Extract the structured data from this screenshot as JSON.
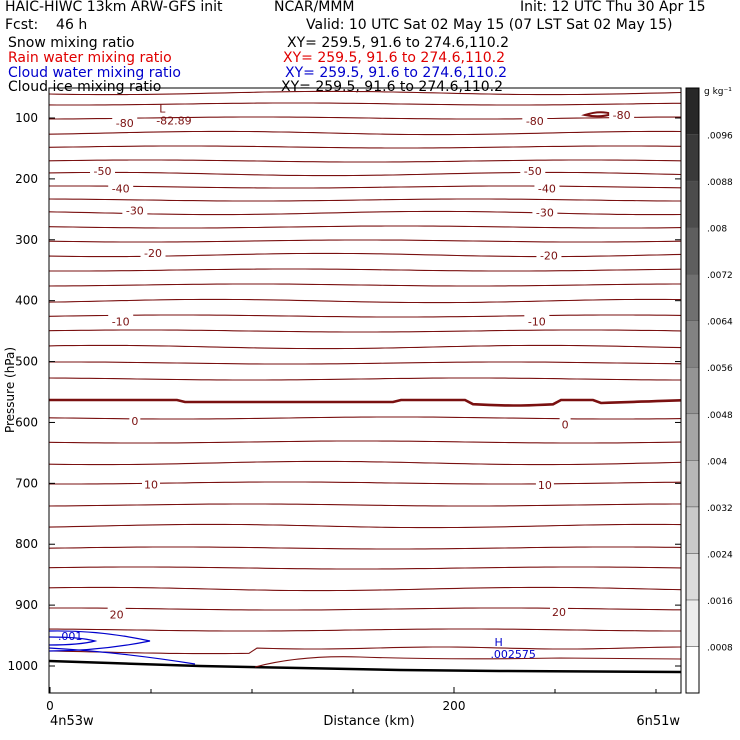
{
  "header": {
    "title_left": "HAIC-HIWC 13km ARW-GFS init",
    "org": "NCAR/MMM",
    "init": "Init: 12 UTC Thu 30 Apr 15",
    "fcst": "Fcst:    46 h",
    "valid": "Valid: 10 UTC Sat 02 May 15 (07 LST Sat 02 May 15)",
    "fields": [
      {
        "label": "Snow mixing ratio",
        "xy": "XY= 259.5, 91.6 to 274.6,110.2",
        "color": "#000000"
      },
      {
        "label": "Rain water mixing ratio",
        "xy": "XY= 259.5, 91.6 to 274.6,110.2",
        "color": "#e00000"
      },
      {
        "label": "Cloud water mixing ratio",
        "xy": "XY= 259.5, 91.6 to 274.6,110.2",
        "color": "#0000cc"
      },
      {
        "label": "Cloud ice mixing ratio",
        "xy": "XY= 259.5, 91.6 to 274.6,110.2",
        "color": "#000000"
      }
    ]
  },
  "chart_data": {
    "type": "contour",
    "xlabel": "Distance (km)",
    "ylabel": "Pressure (hPa)",
    "xlim": [
      0,
      310
    ],
    "x_ticks": [
      0,
      200
    ],
    "x_end_labels": {
      "left": "4n53w",
      "right": "6n51w"
    },
    "ylim": [
      1050,
      50
    ],
    "y_ticks": [
      100,
      200,
      300,
      400,
      500,
      600,
      700,
      800,
      900,
      1000
    ],
    "colorbar": {
      "unit": "g kg⁻¹",
      "levels": [
        ".0008",
        ".0016",
        ".0024",
        ".0032",
        ".004",
        ".0048",
        ".0056",
        ".0064",
        ".0072",
        ".008",
        ".0088",
        ".0096"
      ]
    },
    "temperature_contours": {
      "color": "#7a1010",
      "zero_color": "#7a1010",
      "labels": [
        {
          "x": 37,
          "p": 108,
          "text": "-80"
        },
        {
          "x": 240,
          "p": 105,
          "text": "-80"
        },
        {
          "x": 283,
          "p": 95,
          "text": "-80"
        },
        {
          "x": 26,
          "p": 187,
          "text": "-50"
        },
        {
          "x": 239,
          "p": 187,
          "text": "-50"
        },
        {
          "x": 35,
          "p": 216,
          "text": "-40"
        },
        {
          "x": 246,
          "p": 216,
          "text": "-40"
        },
        {
          "x": 42,
          "p": 252,
          "text": "-30"
        },
        {
          "x": 245,
          "p": 255,
          "text": "-30"
        },
        {
          "x": 51,
          "p": 322,
          "text": "-20"
        },
        {
          "x": 247,
          "p": 326,
          "text": "-20"
        },
        {
          "x": 35,
          "p": 434,
          "text": "-10"
        },
        {
          "x": 241,
          "p": 434,
          "text": "-10"
        },
        {
          "x": 42,
          "p": 598,
          "text": "0"
        },
        {
          "x": 255,
          "p": 603,
          "text": "0"
        },
        {
          "x": 50,
          "p": 702,
          "text": "10"
        },
        {
          "x": 245,
          "p": 703,
          "text": "10"
        },
        {
          "x": 33,
          "p": 915,
          "text": "20"
        },
        {
          "x": 252,
          "p": 911,
          "text": "20"
        }
      ],
      "extremum": {
        "x": 60,
        "p": 96,
        "marker": "L",
        "value": "-82.89"
      }
    },
    "cloud_water": {
      "color": "#0000cc",
      "labels": [
        {
          "x": 10,
          "p": 964,
          "text": ".001"
        }
      ],
      "extremum": {
        "x": 222,
        "p": 982,
        "marker": "H",
        "value": ".002575"
      }
    },
    "terrain": {
      "color": "#000000"
    }
  }
}
